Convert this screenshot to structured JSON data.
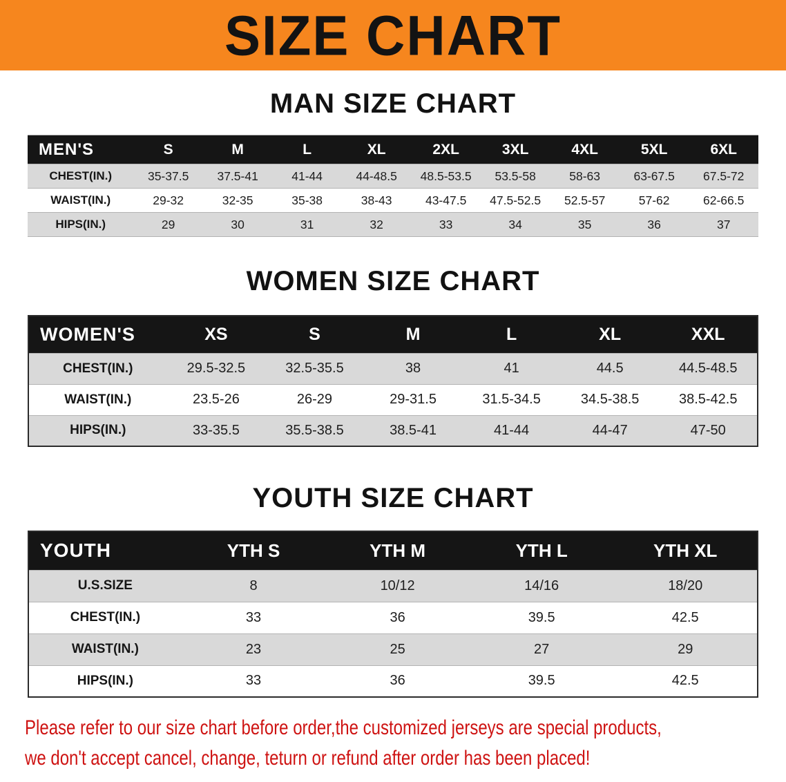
{
  "banner": {
    "title": "SIZE CHART"
  },
  "colors": {
    "banner-orange": "#F6861E",
    "header-black": "#151515",
    "row-gray": "#D9D9D9",
    "footer-red": "#CE1312"
  },
  "sections": [
    {
      "id": "men",
      "heading": "MAN SIZE CHART",
      "table": {
        "header": [
          "MEN'S",
          "S",
          "M",
          "L",
          "XL",
          "2XL",
          "3XL",
          "4XL",
          "5XL",
          "6XL"
        ],
        "rows": [
          [
            "CHEST(IN.)",
            "35-37.5",
            "37.5-41",
            "41-44",
            "44-48.5",
            "48.5-53.5",
            "53.5-58",
            "58-63",
            "63-67.5",
            "67.5-72"
          ],
          [
            "WAIST(IN.)",
            "29-32",
            "32-35",
            "35-38",
            "38-43",
            "43-47.5",
            "47.5-52.5",
            "52.5-57",
            "57-62",
            "62-66.5"
          ],
          [
            "HIPS(IN.)",
            "29",
            "30",
            "31",
            "32",
            "33",
            "34",
            "35",
            "36",
            "37"
          ]
        ]
      }
    },
    {
      "id": "women",
      "heading": "WOMEN SIZE CHART",
      "table": {
        "header": [
          "WOMEN'S",
          "XS",
          "S",
          "M",
          "L",
          "XL",
          "XXL"
        ],
        "rows": [
          [
            "CHEST(IN.)",
            "29.5-32.5",
            "32.5-35.5",
            "38",
            "41",
            "44.5",
            "44.5-48.5"
          ],
          [
            "WAIST(IN.)",
            "23.5-26",
            "26-29",
            "29-31.5",
            "31.5-34.5",
            "34.5-38.5",
            "38.5-42.5"
          ],
          [
            "HIPS(IN.)",
            "33-35.5",
            "35.5-38.5",
            "38.5-41",
            "41-44",
            "44-47",
            "47-50"
          ]
        ]
      }
    },
    {
      "id": "youth",
      "heading": "YOUTH SIZE CHART",
      "table": {
        "header": [
          "YOUTH",
          "YTH S",
          "YTH M",
          "YTH L",
          "YTH XL"
        ],
        "rows": [
          [
            "U.S.SIZE",
            "8",
            "10/12",
            "14/16",
            "18/20"
          ],
          [
            "CHEST(IN.)",
            "33",
            "36",
            "39.5",
            "42.5"
          ],
          [
            "WAIST(IN.)",
            "23",
            "25",
            "27",
            "29"
          ],
          [
            "HIPS(IN.)",
            "33",
            "36",
            "39.5",
            "42.5"
          ]
        ]
      }
    }
  ],
  "footer": {
    "line1": "Please refer to our size chart before order,the customized jerseys are special products,",
    "line2": "we don't accept cancel, change, teturn or refund after order has been placed!"
  }
}
